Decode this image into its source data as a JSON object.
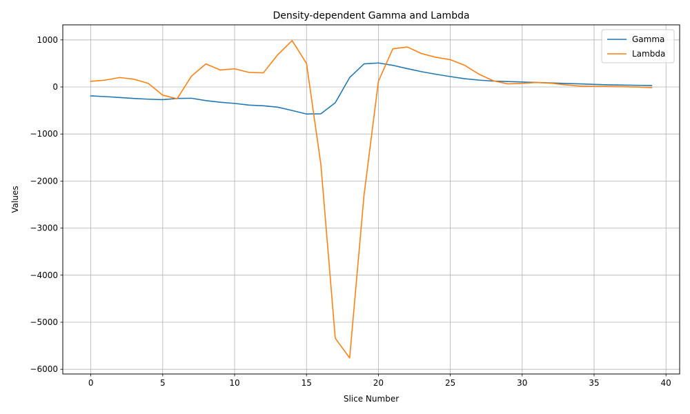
{
  "chart_data": {
    "type": "line",
    "title": "Density-dependent Gamma and Lambda",
    "xlabel": "Slice Number",
    "ylabel": "Values",
    "xlim": [
      -1.95,
      40.95
    ],
    "ylim": [
      -6100,
      1320
    ],
    "xticks": [
      0,
      5,
      10,
      15,
      20,
      25,
      30,
      35,
      40
    ],
    "yticks": [
      1000,
      0,
      -1000,
      -2000,
      -3000,
      -4000,
      -5000,
      -6000
    ],
    "xtick_labels": [
      "0",
      "5",
      "10",
      "15",
      "20",
      "25",
      "30",
      "35",
      "40"
    ],
    "ytick_labels": [
      "1000",
      "0",
      "−1000",
      "−2000",
      "−3000",
      "−4000",
      "−5000",
      "−6000"
    ],
    "grid": true,
    "legend_position": "top-right",
    "x": [
      0,
      1,
      2,
      3,
      4,
      5,
      6,
      7,
      8,
      9,
      10,
      11,
      12,
      13,
      14,
      15,
      16,
      17,
      18,
      19,
      20,
      21,
      22,
      23,
      24,
      25,
      26,
      27,
      28,
      29,
      30,
      31,
      32,
      33,
      34,
      35,
      36,
      37,
      38,
      39
    ],
    "series": [
      {
        "name": "Gamma",
        "color": "#1f77b4",
        "values": [
          -190,
          -205,
          -225,
          -245,
          -260,
          -270,
          -245,
          -240,
          -290,
          -325,
          -350,
          -385,
          -400,
          -430,
          -500,
          -575,
          -570,
          -335,
          200,
          490,
          510,
          460,
          390,
          325,
          270,
          220,
          175,
          145,
          125,
          115,
          105,
          95,
          85,
          75,
          65,
          55,
          45,
          40,
          35,
          30
        ]
      },
      {
        "name": "Lambda",
        "color": "#ff7f0e",
        "values": [
          120,
          145,
          200,
          165,
          75,
          -175,
          -250,
          230,
          490,
          360,
          385,
          310,
          300,
          685,
          985,
          500,
          -1650,
          -5340,
          -5760,
          -2300,
          120,
          810,
          850,
          710,
          630,
          580,
          460,
          270,
          130,
          65,
          75,
          95,
          80,
          45,
          20,
          15,
          10,
          5,
          0,
          -15
        ]
      }
    ]
  }
}
